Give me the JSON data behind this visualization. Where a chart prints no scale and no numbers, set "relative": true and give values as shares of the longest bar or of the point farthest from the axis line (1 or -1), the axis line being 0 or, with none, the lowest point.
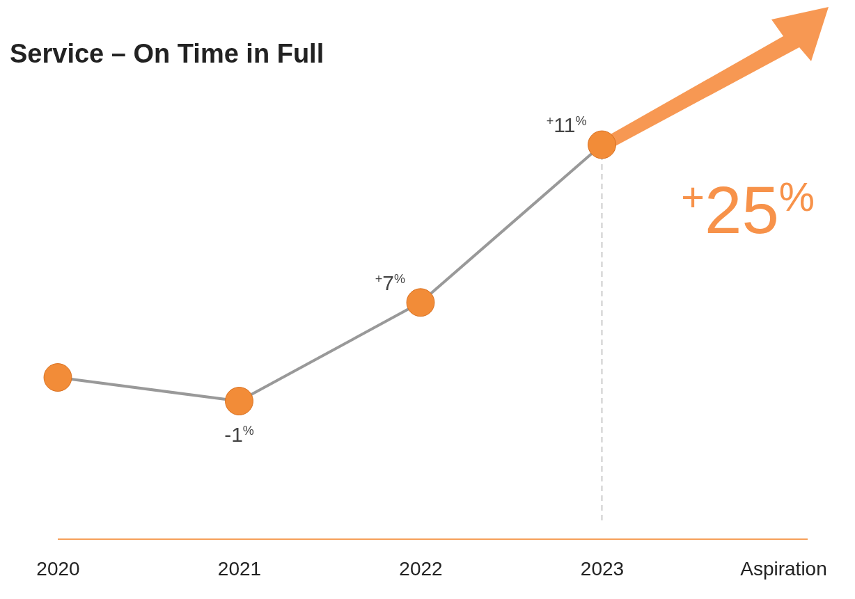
{
  "chart_data": {
    "type": "line",
    "title": "Service – On Time in Full",
    "categories": [
      "2020",
      "2021",
      "2022",
      "2023",
      "Aspiration"
    ],
    "relative": true,
    "series": [
      {
        "color": "#999999",
        "colors": [
          "#f28c38",
          "#f28c38",
          "#f28c38",
          "#f28c38",
          null
        ],
        "values": [
          0.41,
          0.35,
          0.6,
          1,
          null
        ]
      }
    ],
    "marker": "circle",
    "tick_labels": "x",
    "ref_lines": [
      {
        "axis": "x",
        "value": "2023",
        "color": "#cccccc",
        "line_style": "dashed"
      }
    ],
    "annotations": [
      {
        "text": "-1$^{%}$",
        "x": "2021",
        "y": 0.35
      },
      {
        "text": "$^{+}$7$^{%}$",
        "x": "2022",
        "y": 0.6
      },
      {
        "text": "$^{+}$11$^{%}$",
        "x": "2023",
        "y": 1
      },
      "$^{+}$25$^{%}$"
    ]
  }
}
